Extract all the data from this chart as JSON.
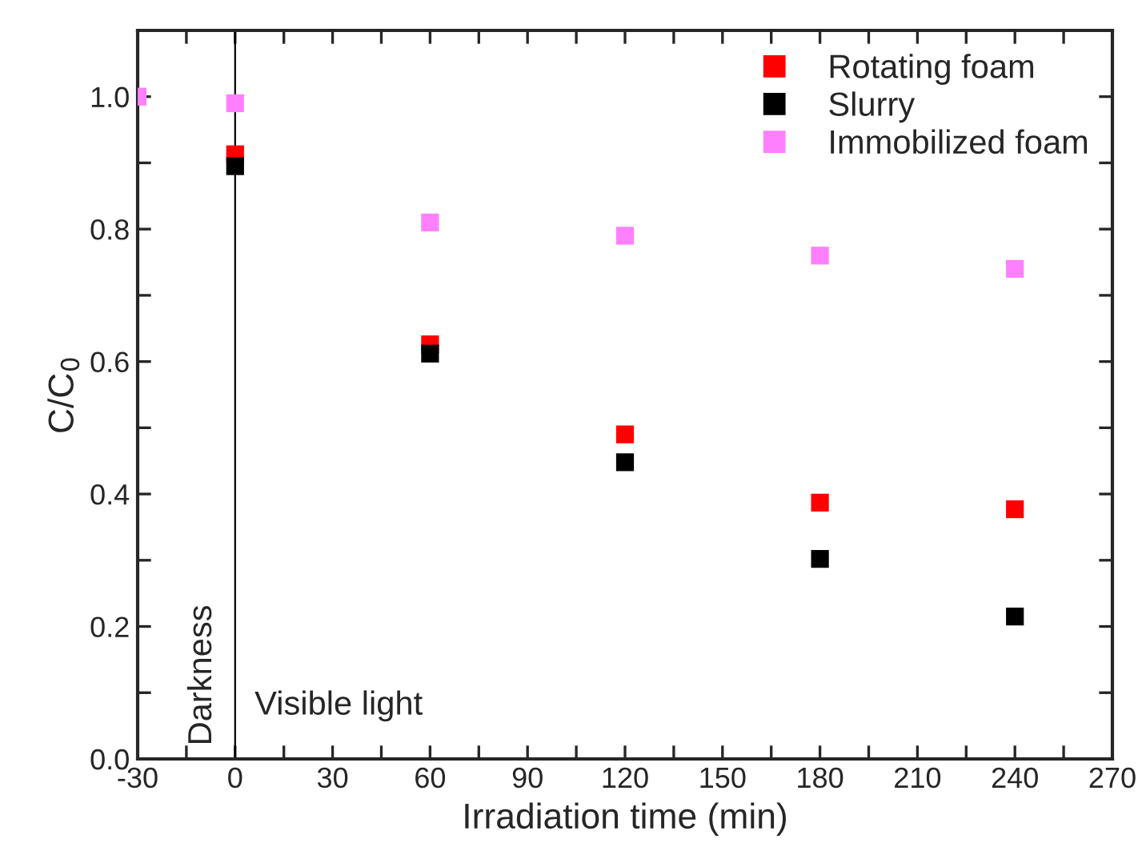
{
  "chart_data": {
    "type": "scatter",
    "xlabel": "Irradiation time (min)",
    "ylabel": "C/C$_{0}$",
    "xlim": [
      -30,
      270
    ],
    "ylim": [
      0,
      1.1
    ],
    "xticks": [
      -30,
      {
        "value": -15,
        "label": null
      },
      0,
      {
        "value": 15,
        "label": null
      },
      30,
      {
        "value": 45,
        "label": null
      },
      60,
      {
        "value": 75,
        "label": null
      },
      90,
      {
        "value": 105,
        "label": null
      },
      120,
      {
        "value": 135,
        "label": null
      },
      150,
      {
        "value": 165,
        "label": null
      },
      180,
      {
        "value": 195,
        "label": null
      },
      210,
      {
        "value": 225,
        "label": null
      },
      240,
      {
        "value": 255,
        "label": null
      },
      270
    ],
    "yticks": [
      {
        "value": 0,
        "label": "0.0"
      },
      {
        "value": 0.1,
        "label": null
      },
      {
        "value": 0.2,
        "label": "0.2"
      },
      {
        "value": 0.3,
        "label": null
      },
      {
        "value": 0.4,
        "label": "0.4"
      },
      {
        "value": 0.5,
        "label": null
      },
      {
        "value": 0.6,
        "label": "0.6"
      },
      {
        "value": 0.7,
        "label": null
      },
      {
        "value": 0.8,
        "label": "0.8"
      },
      {
        "value": 0.9,
        "label": null
      },
      {
        "value": 1.0,
        "label": "1.0"
      }
    ],
    "marker": "square",
    "legend": "top right",
    "grid": false,
    "ref_lines": [
      {
        "axis": "x",
        "value": 0,
        "color": "#000000"
      }
    ],
    "annotations": [
      "Darkness",
      "Visible light"
    ],
    "series": [
      {
        "name": "Rotating foam",
        "color": "#ff0000",
        "x": [
          0,
          60,
          120,
          180,
          240
        ],
        "values": [
          0.913,
          0.626,
          0.49,
          0.387,
          0.377
        ]
      },
      {
        "name": "Slurry",
        "color": "#000000",
        "x": [
          0,
          60,
          120,
          180,
          240
        ],
        "values": [
          0.895,
          0.612,
          0.448,
          0.302,
          0.215
        ]
      },
      {
        "name": "Immobilized foam",
        "color": "#ff80ff",
        "x": [
          -30,
          0,
          60,
          120,
          180,
          240
        ],
        "values": [
          1.0,
          0.99,
          0.81,
          0.79,
          0.76,
          0.74
        ]
      }
    ]
  }
}
